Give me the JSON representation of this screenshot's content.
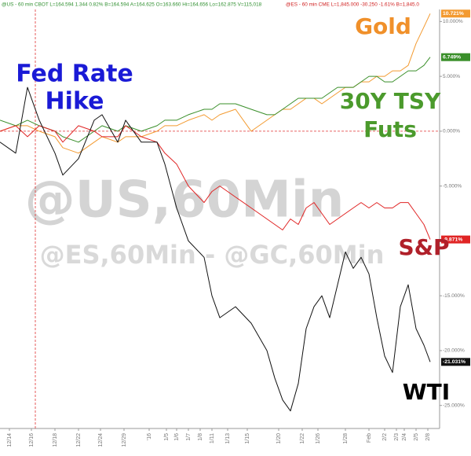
{
  "chart_data": {
    "type": "line",
    "quote_lines": [
      "@US - 60 min CBOT L=164.594 1.344 0.82% B=164.594 A=164.625 O=163.660 Hi=164.656 Lo=162.875 V=115,018",
      "@ES - 60 min CME L=1,845.000 -30.250 -1.61% B=1,845.0"
    ],
    "watermarks": [
      "@US,60Min",
      "@ES,60Min - @GC,60Min"
    ],
    "annotations": [
      {
        "text": "Fed Rate",
        "color": "#1a1ad6"
      },
      {
        "text": "Hike",
        "color": "#1a1ad6"
      },
      {
        "text": "Gold",
        "color": "#f0902a"
      },
      {
        "text": "30Y TSY",
        "color": "#4b9a2c"
      },
      {
        "text": "Futs",
        "color": "#4b9a2c"
      },
      {
        "text": "S&P",
        "color": "#b0202a"
      },
      {
        "text": "WTI",
        "color": "#000000"
      }
    ],
    "event_x": 4.5,
    "baseline_y": 0,
    "x": [
      0,
      2,
      3.5,
      5,
      7,
      8,
      10,
      12,
      13,
      15,
      16,
      18,
      20,
      21,
      22.5,
      24,
      26,
      27,
      28,
      30,
      32,
      34,
      35,
      36,
      37,
      38,
      39,
      40,
      41,
      42,
      43,
      44,
      45,
      46,
      47,
      48,
      49,
      50,
      51,
      52,
      53,
      54,
      54.8
    ],
    "xlim": [
      0,
      56
    ],
    "xticks": [
      {
        "value": 1.2,
        "label": "12/14"
      },
      {
        "value": 4.0,
        "label": "12/16"
      },
      {
        "value": 7.0,
        "label": "12/18"
      },
      {
        "value": 10.0,
        "label": "12/22"
      },
      {
        "value": 12.8,
        "label": "12/24"
      },
      {
        "value": 15.8,
        "label": "12/29"
      },
      {
        "value": 19.0,
        "label": "'16"
      },
      {
        "value": 21.2,
        "label": "1/5"
      },
      {
        "value": 22.5,
        "label": "1/6"
      },
      {
        "value": 24.0,
        "label": "1/7"
      },
      {
        "value": 25.5,
        "label": "1/8"
      },
      {
        "value": 27.0,
        "label": "1/11"
      },
      {
        "value": 29.0,
        "label": "1/13"
      },
      {
        "value": 31.5,
        "label": "1/15"
      },
      {
        "value": 35.5,
        "label": "1/20"
      },
      {
        "value": 38.5,
        "label": "1/22"
      },
      {
        "value": 40.5,
        "label": "1/26"
      },
      {
        "value": 44.0,
        "label": "1/28"
      },
      {
        "value": 47.0,
        "label": "Feb"
      },
      {
        "value": 49.0,
        "label": "2/2"
      },
      {
        "value": 50.5,
        "label": "2/3"
      },
      {
        "value": 51.5,
        "label": "2/4"
      },
      {
        "value": 53.0,
        "label": "2/5"
      },
      {
        "value": 54.5,
        "label": "2/8"
      }
    ],
    "ylim": [
      -27.1,
      11.1
    ],
    "yticks": [
      {
        "value": 10,
        "label": "10.000%"
      },
      {
        "value": 5,
        "label": "5.000%"
      },
      {
        "value": 0,
        "label": "0.000%"
      },
      {
        "value": -5,
        "label": "-5.000%"
      },
      {
        "value": -10,
        "label": "-10.000%"
      },
      {
        "value": -15,
        "label": "-15.000%"
      },
      {
        "value": -20,
        "label": "-20.000%"
      },
      {
        "value": -25,
        "label": "-25.000%"
      }
    ],
    "series": [
      {
        "color": "#f39a30",
        "end_label": {
          "value": 10.721,
          "label": "10.721%"
        },
        "values": [
          0,
          0.5,
          0.5,
          0,
          -0.5,
          -1.5,
          -2,
          -1,
          -0.5,
          -1,
          -0.5,
          -0.5,
          0,
          0.5,
          0.5,
          1,
          1.5,
          1,
          1.5,
          2,
          0,
          1,
          1.5,
          2,
          2,
          2.5,
          3,
          3,
          2.5,
          3,
          3.5,
          4,
          4,
          4.5,
          4.5,
          5,
          5,
          5.5,
          5.5,
          6,
          8,
          9.5,
          10.721
        ]
      },
      {
        "color": "#3a8f2a",
        "end_label": {
          "value": 6.749,
          "label": "6.749%"
        },
        "values": [
          1,
          0.5,
          1,
          0.5,
          0,
          -0.5,
          -1,
          0,
          0.5,
          0,
          0.5,
          0,
          0.5,
          1,
          1,
          1.5,
          2,
          2,
          2.5,
          2.5,
          2,
          1.5,
          1.5,
          2,
          2.5,
          3,
          3,
          3,
          3,
          3.5,
          4,
          4,
          4,
          4.5,
          5,
          5,
          4.5,
          4.5,
          5,
          5.5,
          5.5,
          6,
          6.749
        ]
      },
      {
        "color": "#e02424",
        "end_label": {
          "value": -9.871,
          "label": "-9.871%"
        },
        "values": [
          0,
          0.5,
          -0.5,
          0.5,
          0,
          -1,
          0.5,
          0,
          -0.5,
          -0.5,
          0.5,
          -0.5,
          -1,
          -2,
          -3,
          -5,
          -6.5,
          -5.5,
          -5,
          -6,
          -7,
          -8,
          -8.5,
          -9,
          -8,
          -8.5,
          -7,
          -6.5,
          -7.5,
          -8.5,
          -8,
          -7.5,
          -7,
          -6.5,
          -7,
          -6.5,
          -7,
          -7,
          -6.5,
          -6.5,
          -7.5,
          -8.5,
          -9.871
        ]
      },
      {
        "color": "#111111",
        "end_label": {
          "value": -21.031,
          "label": "-21.031%"
        },
        "values": [
          -1,
          -2,
          4,
          1,
          -2,
          -4,
          -2.5,
          1,
          1.5,
          -1,
          1,
          -1,
          -1,
          -3,
          -7,
          -10,
          -11.5,
          -15,
          -17,
          -16,
          -17.5,
          -20,
          -22.5,
          -24.5,
          -25.5,
          -23,
          -18,
          -16,
          -15,
          -17,
          -14,
          -11,
          -12.5,
          -11.5,
          -13,
          -17,
          -20.5,
          -22,
          -16,
          -14,
          -18,
          -19.5,
          -21.031
        ]
      }
    ],
    "grid": false
  }
}
